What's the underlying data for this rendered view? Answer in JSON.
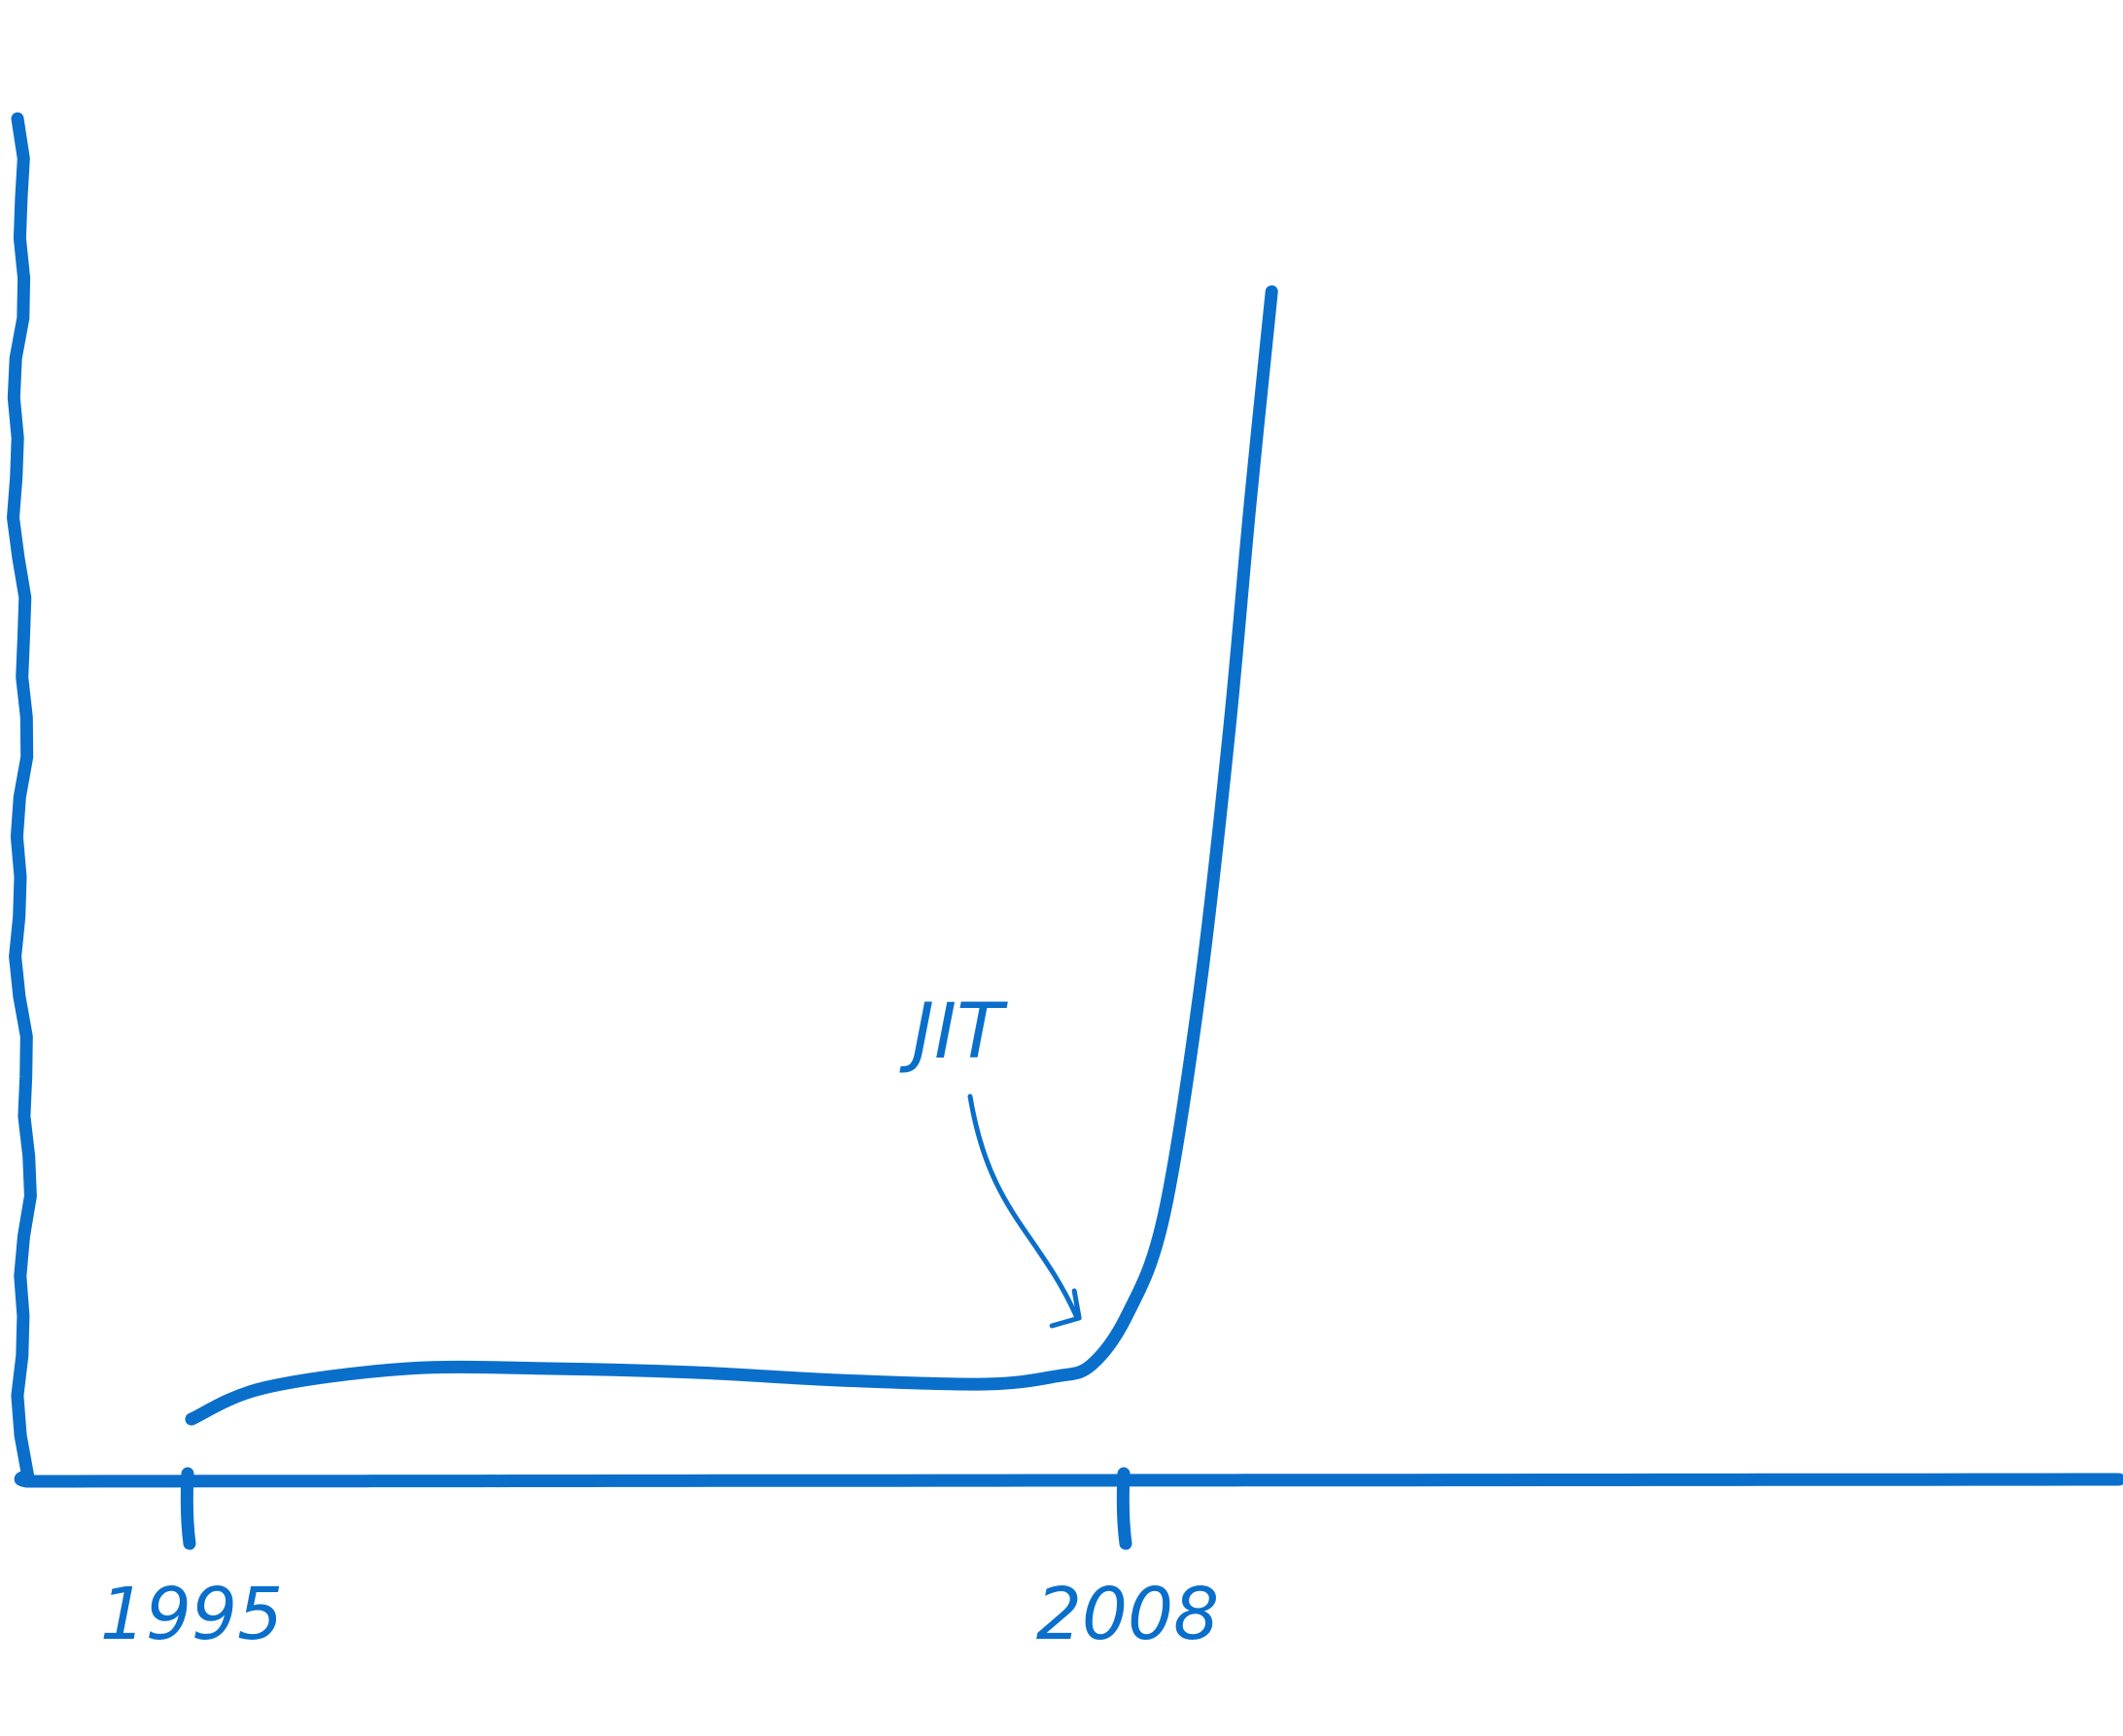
{
  "chart_data": {
    "type": "line",
    "title": "",
    "xlabel": "",
    "ylabel": "",
    "color": "#0a6fcb",
    "grid": false,
    "legend": "none",
    "x_ticks": [
      {
        "year": 1995,
        "label": "1995"
      },
      {
        "year": 2008,
        "label": "2008"
      }
    ],
    "series": [
      {
        "points": [
          {
            "x": 1995.0,
            "y": 0.1
          },
          {
            "x": 1996.0,
            "y": 0.18
          },
          {
            "x": 1998.0,
            "y": 0.23
          },
          {
            "x": 2000.0,
            "y": 0.23
          },
          {
            "x": 2002.0,
            "y": 0.22
          },
          {
            "x": 2004.0,
            "y": 0.2
          },
          {
            "x": 2006.0,
            "y": 0.19
          },
          {
            "x": 2007.0,
            "y": 0.21
          },
          {
            "x": 2007.5,
            "y": 0.24
          },
          {
            "x": 2008.0,
            "y": 0.37
          },
          {
            "x": 2008.5,
            "y": 0.62
          },
          {
            "x": 2009.0,
            "y": 1.2
          },
          {
            "x": 2009.4,
            "y": 1.85
          },
          {
            "x": 2009.7,
            "y": 2.45
          },
          {
            "x": 2010.0,
            "y": 3.0
          }
        ]
      }
    ],
    "annotations": [
      {
        "text": "JIT",
        "target_x": 2007.3,
        "target_y": 0.36
      }
    ]
  }
}
